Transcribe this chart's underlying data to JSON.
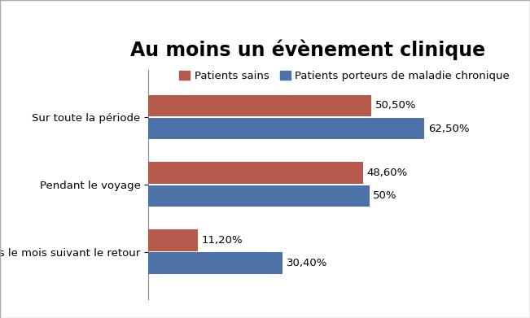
{
  "title": "Au moins un évènement clinique",
  "categories": [
    "Sur toute la période",
    "Pendant le voyage",
    "Dans le mois suivant le retour"
  ],
  "series": [
    {
      "label": "Patients sains",
      "values": [
        50.5,
        48.6,
        11.2
      ],
      "color": "#b55a4a",
      "labels": [
        "50,50%",
        "48,60%",
        "11,20%"
      ]
    },
    {
      "label": "Patients porteurs de maladie chronique",
      "values": [
        62.5,
        50.0,
        30.4
      ],
      "color": "#4d72a8",
      "labels": [
        "62,50%",
        "50%",
        "30,40%"
      ]
    }
  ],
  "bar_height": 0.32,
  "bar_gap": 0.02,
  "xlim": [
    0,
    72
  ],
  "background_color": "#ffffff",
  "title_fontsize": 17,
  "label_fontsize": 9.5,
  "tick_fontsize": 9.5,
  "legend_fontsize": 9.5,
  "figure_border_color": "#aaaaaa"
}
